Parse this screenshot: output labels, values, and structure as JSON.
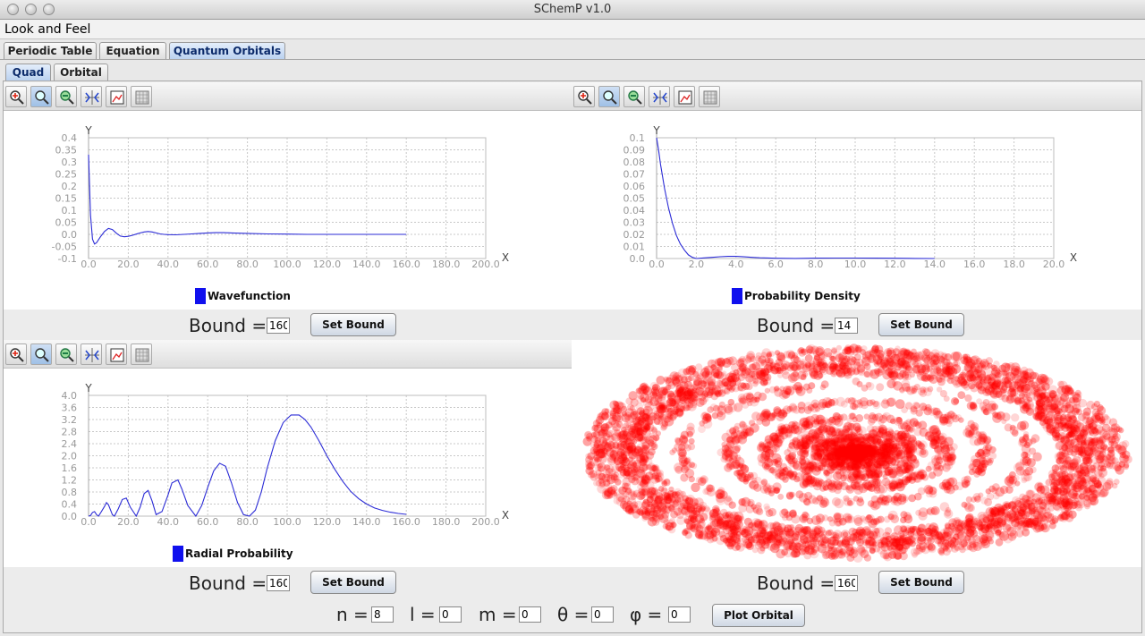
{
  "window": {
    "title": "SChemP v1.0"
  },
  "menu": {
    "items": [
      "Look and Feel"
    ]
  },
  "tabs": [
    {
      "label": "Periodic Table",
      "active": false
    },
    {
      "label": "Equation",
      "active": false
    },
    {
      "label": "Quantum Orbitals",
      "active": true
    }
  ],
  "subtabs": [
    {
      "label": "Quad",
      "active": true
    },
    {
      "label": "Orbital",
      "active": false
    }
  ],
  "toolbar_icons": [
    "zoom-in-icon",
    "zoom-icon",
    "zoom-out-icon",
    "auto-range-icon",
    "save-image-icon",
    "grid-icon"
  ],
  "panels": {
    "wavefunction": {
      "bound_label": "Bound =",
      "bound_value": "160",
      "button": "Set Bound"
    },
    "density": {
      "bound_label": "Bound =",
      "bound_value": "14",
      "button": "Set Bound"
    },
    "radial": {
      "bound_label": "Bound =",
      "bound_value": "160",
      "button": "Set Bound"
    },
    "orbital": {
      "bound_label": "Bound =",
      "bound_value": "160",
      "button": "Set Bound"
    }
  },
  "quantum": {
    "n_label": "n =",
    "n": "8",
    "l_label": "l =",
    "l": "0",
    "m_label": "m =",
    "m": "0",
    "theta_label": "θ =",
    "theta": "0",
    "phi_label": "φ =",
    "phi": "0",
    "plot_button": "Plot Orbital"
  },
  "colors": {
    "line": "#2b2bd6",
    "legend": "#1010ee",
    "orbital": "#ff0000"
  },
  "chart_data": [
    {
      "type": "line",
      "legend": "Wavefunction",
      "xlabel": "X",
      "ylabel": "Y",
      "xlim": [
        0,
        200
      ],
      "ylim": [
        -0.1,
        0.4
      ],
      "xticks": [
        "0.0",
        "20.0",
        "40.0",
        "60.0",
        "80.0",
        "100.0",
        "120.0",
        "140.0",
        "160.0",
        "180.0",
        "200.0"
      ],
      "yticks": [
        "-0.1",
        "-0.05",
        "0.0",
        "0.05",
        "0.1",
        "0.15",
        "0.2",
        "0.25",
        "0.3",
        "0.35",
        "0.4"
      ],
      "grid": true,
      "series": [
        {
          "x": [
            0,
            0.5,
            1,
            2,
            3,
            4,
            6,
            8,
            10,
            12,
            14,
            16,
            18,
            20,
            22,
            24,
            26,
            28,
            30,
            32,
            34,
            36,
            38,
            40,
            44,
            48,
            52,
            56,
            60,
            64,
            68,
            72,
            76,
            80,
            90,
            100,
            110,
            120,
            130,
            140,
            150,
            160
          ],
          "y": [
            0.33,
            0.2,
            0.08,
            -0.02,
            -0.04,
            -0.035,
            -0.01,
            0.012,
            0.025,
            0.02,
            0.005,
            -0.007,
            -0.01,
            -0.008,
            -0.004,
            0.001,
            0.006,
            0.01,
            0.012,
            0.01,
            0.006,
            0.002,
            0.0,
            -0.001,
            -0.002,
            0.0,
            0.002,
            0.004,
            0.006,
            0.007,
            0.007,
            0.006,
            0.005,
            0.004,
            0.002,
            0.001,
            0.0,
            0.0,
            0.0,
            0.0,
            0.0,
            0.0
          ]
        }
      ]
    },
    {
      "type": "line",
      "legend": "Probability Density",
      "xlabel": "X",
      "ylabel": "Y",
      "xlim": [
        0,
        20
      ],
      "ylim": [
        0,
        0.1
      ],
      "xticks": [
        "0.0",
        "2.0",
        "4.0",
        "6.0",
        "8.0",
        "10.0",
        "12.0",
        "14.0",
        "16.0",
        "18.0",
        "20.0"
      ],
      "yticks": [
        "0.0",
        "0.01",
        "0.02",
        "0.03",
        "0.04",
        "0.05",
        "0.06",
        "0.07",
        "0.08",
        "0.09",
        "0.1"
      ],
      "grid": true,
      "series": [
        {
          "x": [
            0,
            0.1,
            0.2,
            0.4,
            0.6,
            0.8,
            1.0,
            1.2,
            1.4,
            1.6,
            1.8,
            2.0,
            2.4,
            2.8,
            3.2,
            3.6,
            4.0,
            4.4,
            4.8,
            5.2,
            6,
            7,
            8,
            9,
            10,
            11,
            12,
            13,
            14
          ],
          "y": [
            0.1,
            0.09,
            0.078,
            0.058,
            0.042,
            0.029,
            0.019,
            0.012,
            0.007,
            0.003,
            0.001,
            0.0,
            0.0005,
            0.001,
            0.0015,
            0.0018,
            0.0018,
            0.0014,
            0.001,
            0.0006,
            0.0002,
            0.0001,
            0.0003,
            0.0004,
            0.0004,
            0.0003,
            0.0002,
            0.0001,
            0.0
          ]
        }
      ]
    },
    {
      "type": "line",
      "legend": "Radial Probability",
      "xlabel": "X",
      "ylabel": "Y",
      "xlim": [
        0,
        200
      ],
      "ylim": [
        0,
        4.0
      ],
      "xticks": [
        "0.0",
        "20.0",
        "40.0",
        "60.0",
        "80.0",
        "100.0",
        "120.0",
        "140.0",
        "160.0",
        "180.0",
        "200.0"
      ],
      "yticks": [
        "0.0",
        "0.4",
        "0.8",
        "1.2",
        "1.6",
        "2.0",
        "2.4",
        "2.8",
        "3.2",
        "3.6",
        "4.0"
      ],
      "grid": true,
      "series": [
        {
          "x": [
            0,
            1,
            2,
            3,
            4,
            5,
            6,
            8,
            9,
            10,
            12,
            13,
            15,
            17,
            19,
            21,
            24,
            26,
            28,
            30,
            32,
            34,
            37,
            40,
            42,
            45,
            47,
            50,
            54,
            57,
            60,
            63,
            66,
            69,
            72,
            75,
            78,
            81,
            84,
            87,
            90,
            94,
            98,
            102,
            106,
            109,
            112,
            116,
            120,
            124,
            128,
            132,
            136,
            140,
            144,
            148,
            152,
            156,
            160
          ],
          "y": [
            0,
            0.02,
            0.12,
            0.15,
            0.05,
            0.0,
            0.1,
            0.32,
            0.45,
            0.38,
            0.05,
            0.0,
            0.25,
            0.55,
            0.6,
            0.3,
            0.0,
            0.3,
            0.75,
            0.85,
            0.5,
            0.05,
            0.15,
            0.7,
            1.1,
            1.2,
            0.9,
            0.35,
            0.0,
            0.35,
            0.95,
            1.5,
            1.75,
            1.65,
            1.1,
            0.45,
            0.05,
            0.0,
            0.2,
            0.8,
            1.6,
            2.5,
            3.1,
            3.35,
            3.35,
            3.2,
            2.95,
            2.5,
            2.0,
            1.55,
            1.15,
            0.82,
            0.58,
            0.4,
            0.27,
            0.19,
            0.13,
            0.09,
            0.06
          ]
        }
      ]
    }
  ]
}
